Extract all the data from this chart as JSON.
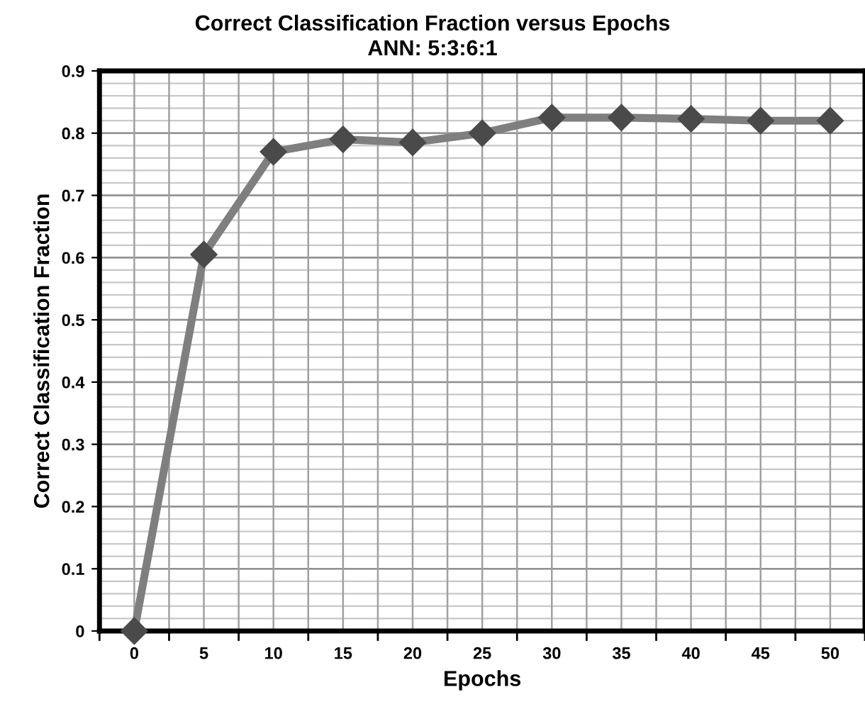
{
  "chart_data": {
    "type": "line",
    "title": "Correct Classification Fraction versus Epochs",
    "subtitle": "ANN: 5:3:6:1",
    "xlabel": "Epochs",
    "ylabel": "Correct Classification Fraction",
    "categories": [
      "0",
      "5",
      "10",
      "15",
      "20",
      "25",
      "30",
      "35",
      "40",
      "45",
      "50"
    ],
    "series": [
      {
        "color": "#7f7f7f",
        "values": [
          0,
          0.605,
          0.77,
          0.79,
          0.785,
          0.8,
          0.825,
          0.825,
          0.823,
          0.82,
          0.82
        ]
      }
    ],
    "ylim": [
      0,
      0.9
    ],
    "yticks": [
      0,
      0.1,
      0.2,
      0.3,
      0.4,
      0.5,
      0.6,
      0.7,
      0.8,
      0.9
    ],
    "grid": true,
    "marker": "diamond",
    "line_style": "solid"
  }
}
